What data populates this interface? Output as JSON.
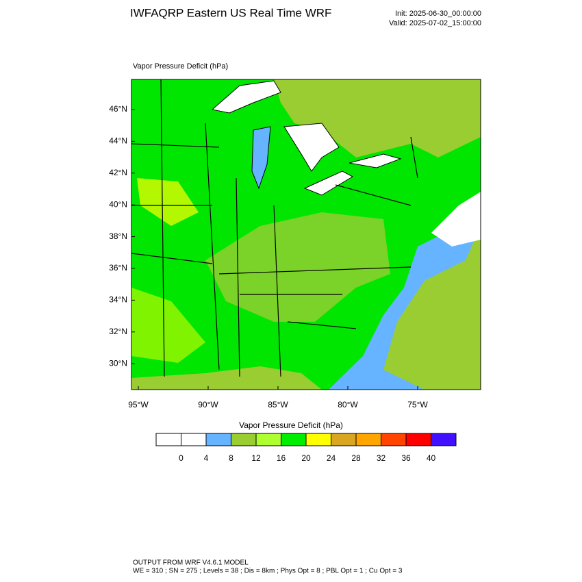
{
  "header": {
    "title": "IWFAQRP Eastern US Real Time WRF",
    "init": "Init: 2025-06-30_00:00:00",
    "valid": "Valid: 2025-07-02_15:00:00"
  },
  "map": {
    "subtitle": "Vapor Pressure Deficit   (hPa)",
    "lat_labels": [
      "46°N",
      "44°N",
      "42°N",
      "40°N",
      "38°N",
      "36°N",
      "34°N",
      "32°N",
      "30°N"
    ],
    "lon_labels": [
      "95°W",
      "90°W",
      "85°W",
      "80°W",
      "75°W"
    ]
  },
  "colorbar": {
    "title": "Vapor Pressure Deficit  (hPa)",
    "colors": [
      "#ffffff",
      "#ffffff",
      "#66b3ff",
      "#9acd32",
      "#adff2f",
      "#00ee00",
      "#ffff00",
      "#daa520",
      "#ffa500",
      "#ff4500",
      "#ff0000",
      "#4010ff"
    ],
    "labels": [
      "0",
      "4",
      "8",
      "12",
      "16",
      "20",
      "24",
      "28",
      "32",
      "36",
      "40"
    ]
  },
  "footer": {
    "line1": "OUTPUT FROM WRF V4.6.1 MODEL",
    "line2": "WE = 310 ; SN = 275 ; Levels = 38 ; Dis = 8km ; Phys Opt = 8 ; PBL Opt = 1 ; Cu Opt = 3"
  }
}
